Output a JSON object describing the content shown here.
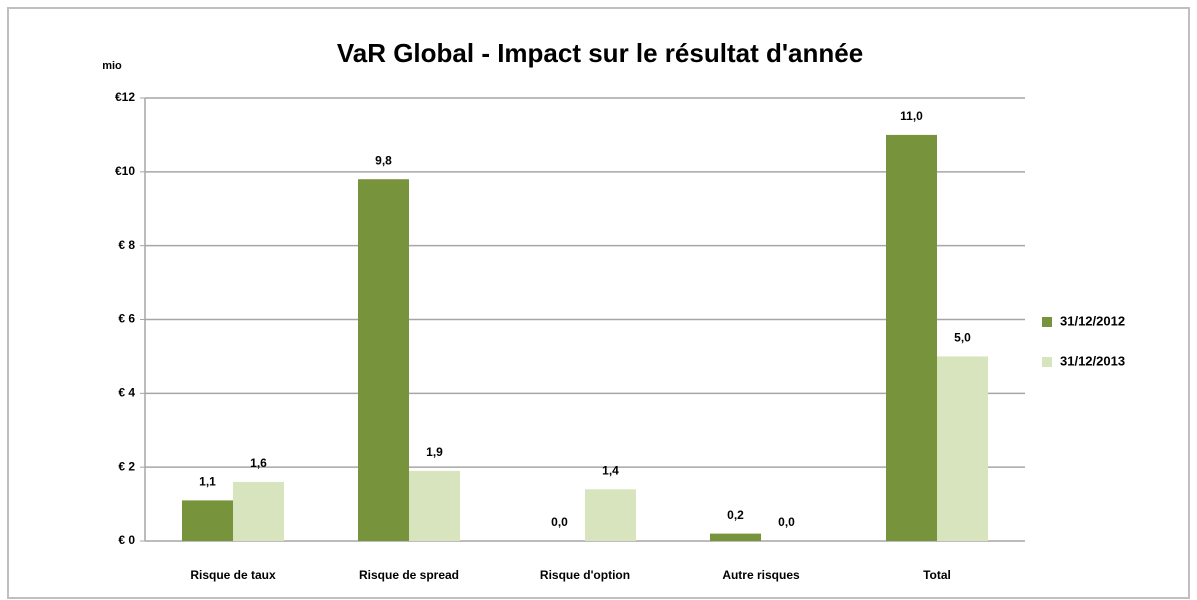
{
  "chart_data": {
    "type": "bar",
    "title": "VaR Global - Impact sur le résultat d'année",
    "y_unit": "mio",
    "categories": [
      "Risque de taux",
      "Risque de spread",
      "Risque d'option",
      "Autre risques",
      "Total"
    ],
    "series": [
      {
        "name": "31/12/2012",
        "color": "#77933c",
        "values": [
          1.1,
          9.8,
          0.0,
          0.2,
          11.0
        ],
        "value_labels": [
          "1,1",
          "9,8",
          "0,0",
          "0,2",
          "11,0"
        ]
      },
      {
        "name": "31/12/2013",
        "color": "#d7e4bd",
        "values": [
          1.6,
          1.9,
          1.4,
          0.0,
          5.0
        ],
        "value_labels": [
          "1,6",
          "1,9",
          "1,4",
          "0,0",
          "5,0"
        ]
      }
    ],
    "ylim": [
      0,
      12
    ],
    "yticks": [
      {
        "value": 0,
        "label": "€ 0"
      },
      {
        "value": 2,
        "label": "€ 2"
      },
      {
        "value": 4,
        "label": "€ 4"
      },
      {
        "value": 6,
        "label": "€ 6"
      },
      {
        "value": 8,
        "label": "€ 8"
      },
      {
        "value": 10,
        "label": "€10"
      },
      {
        "value": 12,
        "label": "€12"
      }
    ],
    "grid": true,
    "legend": "right"
  }
}
